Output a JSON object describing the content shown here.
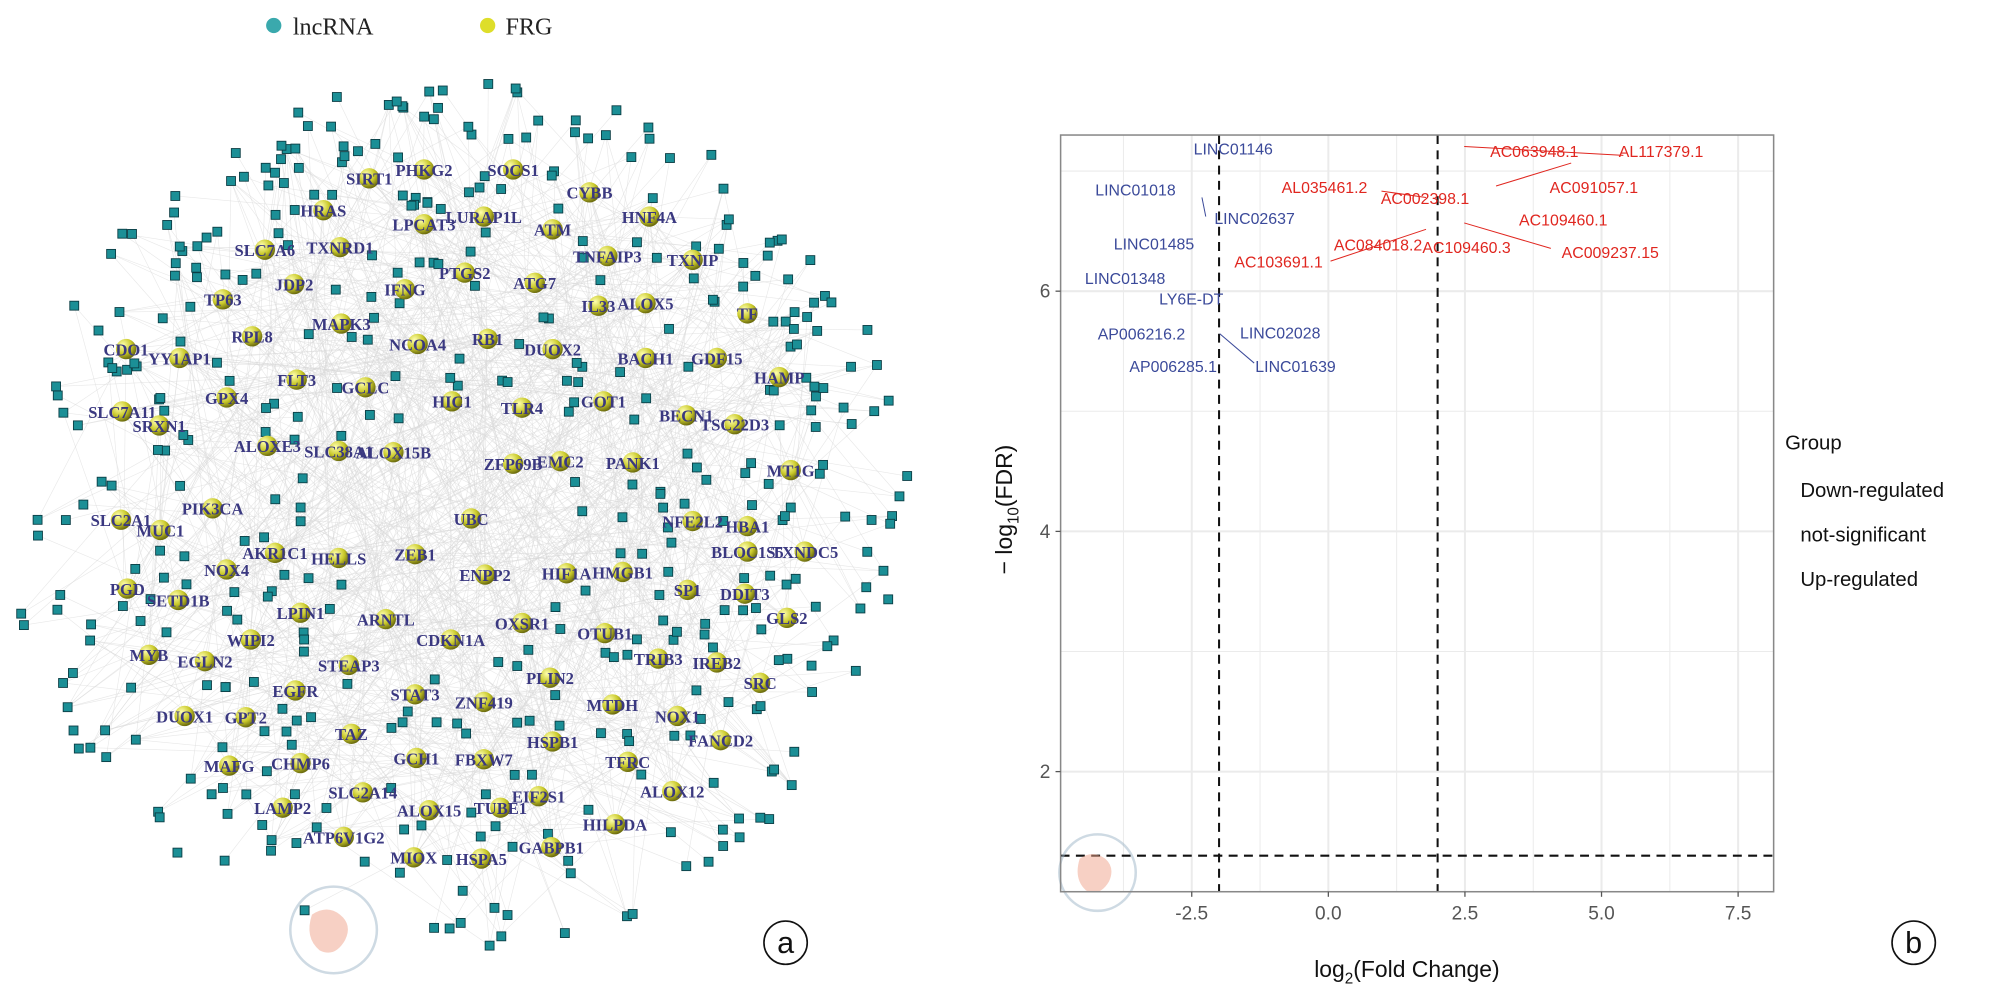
{
  "network": {
    "legend": [
      {
        "label": "lncRNA",
        "color": "#3aa9ad"
      },
      {
        "label": "FRG",
        "color": "#dede2a"
      }
    ],
    "lncrna_color": "#1b8f96",
    "frg_color": "#c9c92a",
    "edge_color": "#d8d8d8",
    "frg_labels": [
      "PHKG2",
      "SOCS1",
      "SIRT1",
      "CYBB",
      "HRAS",
      "LPCAT3",
      "LURAP1L",
      "ATM",
      "HNF4A",
      "SLC7A6",
      "TXNRD1",
      "TNFAIP3",
      "TXNIP",
      "PTGS2",
      "ATG7",
      "JDP2",
      "IFNG",
      "TP63",
      "ALOX5",
      "IL33",
      "TF",
      "MAPK3",
      "RPL8",
      "NCOA4",
      "RB1",
      "DUOX2",
      "BACH1",
      "GDF15",
      "CDO1",
      "YY1AP1",
      "HAMP",
      "FLT3",
      "GCLC",
      "GPX4",
      "HIC1",
      "TLR4",
      "GOT1",
      "SLC7A11",
      "SRXN1",
      "BECN1",
      "TSC22D3",
      "ALOXE3",
      "SLC38A1",
      "ALOX15B",
      "ZFP69B",
      "EMC2",
      "PANK1",
      "MT1G",
      "PIK3CA",
      "SLC2A1",
      "MUC1",
      "UBC",
      "NFE2L2",
      "HBA1",
      "AKR1C1",
      "HELLS",
      "ZEB1",
      "BLOC1S5",
      "TXNDC5",
      "NOX4",
      "ENPP2",
      "HIF1A",
      "HMGB1",
      "PGD",
      "SETD1B",
      "SP1",
      "DDIT3",
      "LPIN1",
      "ARNTL",
      "OXSR1",
      "OTUB1",
      "GLS2",
      "WIPI2",
      "CDKN1A",
      "MYB",
      "EGLN2",
      "STEAP3",
      "TRIB3",
      "IREB2",
      "PLIN2",
      "SRC",
      "EGFR",
      "STAT3",
      "ZNF419",
      "MTDH",
      "DUOX1",
      "GPT2",
      "NOX1",
      "TAZ",
      "FANCD2",
      "HSPB1",
      "GCH1",
      "FBXW7",
      "MAFG",
      "CHMP6",
      "TFRC",
      "SLC2A14",
      "EIF2S1",
      "ALOX12",
      "LAMP2",
      "ALOX15",
      "TUBE1",
      "HILPDA",
      "ATP6V1G2",
      "MIOX",
      "HSPA5",
      "GABPB1"
    ],
    "panel_label": "a"
  },
  "chart_data": {
    "type": "scatter",
    "xlabel": "log2(Fold Change)",
    "xlabel_main": "log",
    "xlabel_sub": "2",
    "xlabel_rest": "(Fold Change)",
    "ylabel_prefix": "− log",
    "ylabel_sub": "10",
    "ylabel_rest": "(FDR)",
    "xlim": [
      -4.9,
      8.15
    ],
    "ylim": [
      1.0,
      7.3
    ],
    "x_ticks": [
      -2.5,
      0.0,
      2.5,
      5.0,
      7.5
    ],
    "x_tick_labels": [
      "-2.5",
      "0.0",
      "2.5",
      "5.0",
      "7.5"
    ],
    "y_ticks": [
      2,
      4,
      6
    ],
    "y_tick_labels": [
      "2",
      "4",
      "6"
    ],
    "grid": true,
    "thresholds": {
      "log2fc": [
        -2,
        2
      ],
      "neg_log10_fdr": 1.3
    },
    "legend": {
      "title": "Group",
      "position": "right",
      "entries": [
        "Down-regulated",
        "not-significant",
        "Up-regulated"
      ]
    },
    "colors": {
      "down": "#3b4a9a",
      "up": "#e0261f"
    },
    "labels": [
      {
        "text": "LINC01146",
        "x": -1.74,
        "y": 7.18,
        "group": "down"
      },
      {
        "text": "LINC01018",
        "x": -3.53,
        "y": 6.84,
        "group": "down"
      },
      {
        "text": "LINC02637",
        "x": -1.35,
        "y": 6.6,
        "group": "down"
      },
      {
        "text": "LINC01485",
        "x": -3.19,
        "y": 6.39,
        "group": "down"
      },
      {
        "text": "LINC01348",
        "x": -3.72,
        "y": 6.1,
        "group": "down"
      },
      {
        "text": "LY6E-DT",
        "x": -2.51,
        "y": 5.93,
        "group": "down"
      },
      {
        "text": "AP006216.2",
        "x": -3.42,
        "y": 5.64,
        "group": "down"
      },
      {
        "text": "LINC02028",
        "x": -0.88,
        "y": 5.65,
        "group": "down"
      },
      {
        "text": "AP006285.1",
        "x": -2.84,
        "y": 5.37,
        "group": "down"
      },
      {
        "text": "LINC01639",
        "x": -0.6,
        "y": 5.37,
        "group": "down"
      },
      {
        "text": "AC063948.1",
        "x": 3.77,
        "y": 7.16,
        "group": "up"
      },
      {
        "text": "AL117379.1",
        "x": 6.09,
        "y": 7.16,
        "group": "up"
      },
      {
        "text": "AL035461.2",
        "x": -0.07,
        "y": 6.86,
        "group": "up"
      },
      {
        "text": "AC091057.1",
        "x": 4.86,
        "y": 6.86,
        "group": "up"
      },
      {
        "text": "AC002398.1",
        "x": 1.77,
        "y": 6.77,
        "group": "up"
      },
      {
        "text": "AC109460.1",
        "x": 4.3,
        "y": 6.59,
        "group": "up"
      },
      {
        "text": "AC084018.2",
        "x": 0.91,
        "y": 6.38,
        "group": "up"
      },
      {
        "text": "AC109460.3",
        "x": 2.53,
        "y": 6.36,
        "group": "up"
      },
      {
        "text": "AC009237.15",
        "x": 5.16,
        "y": 6.32,
        "group": "up"
      },
      {
        "text": "AC103691.1",
        "x": -0.91,
        "y": 6.24,
        "group": "up"
      }
    ],
    "panel_label": "b"
  }
}
